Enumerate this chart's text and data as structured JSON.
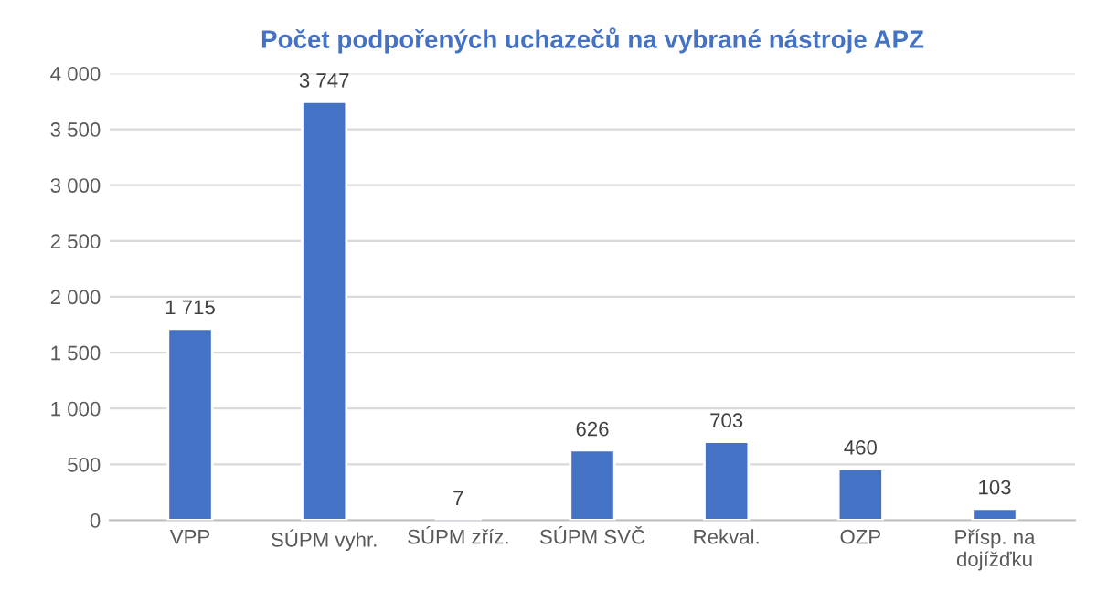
{
  "chart_data": {
    "type": "bar",
    "title": "Počet podpořených uchazečů na vybrané nástroje APZ",
    "categories": [
      "VPP",
      "SÚPM vyhr.",
      "SÚPM zříz.",
      "SÚPM SVČ",
      "Rekval.",
      "OZP",
      "Přísp. na\ndojížďku"
    ],
    "values": [
      1715,
      3747,
      7,
      626,
      703,
      460,
      103
    ],
    "value_labels": [
      "1 715",
      "3 747",
      "7",
      "626",
      "703",
      "460",
      "103"
    ],
    "color": "#4472c4",
    "ylim": [
      0,
      4000
    ],
    "yticks": [
      0,
      500,
      {
        "value": 1000,
        "label": "1 000"
      },
      {
        "value": 1500,
        "label": "1 500"
      },
      {
        "value": 2000,
        "label": "2 000"
      },
      {
        "value": 2500,
        "label": "2 500"
      },
      {
        "value": 3000,
        "label": "3 000"
      },
      {
        "value": 3500,
        "label": "3 500"
      },
      {
        "value": 4000,
        "label": "4 000"
      }
    ],
    "grid": "y",
    "legend": false
  }
}
